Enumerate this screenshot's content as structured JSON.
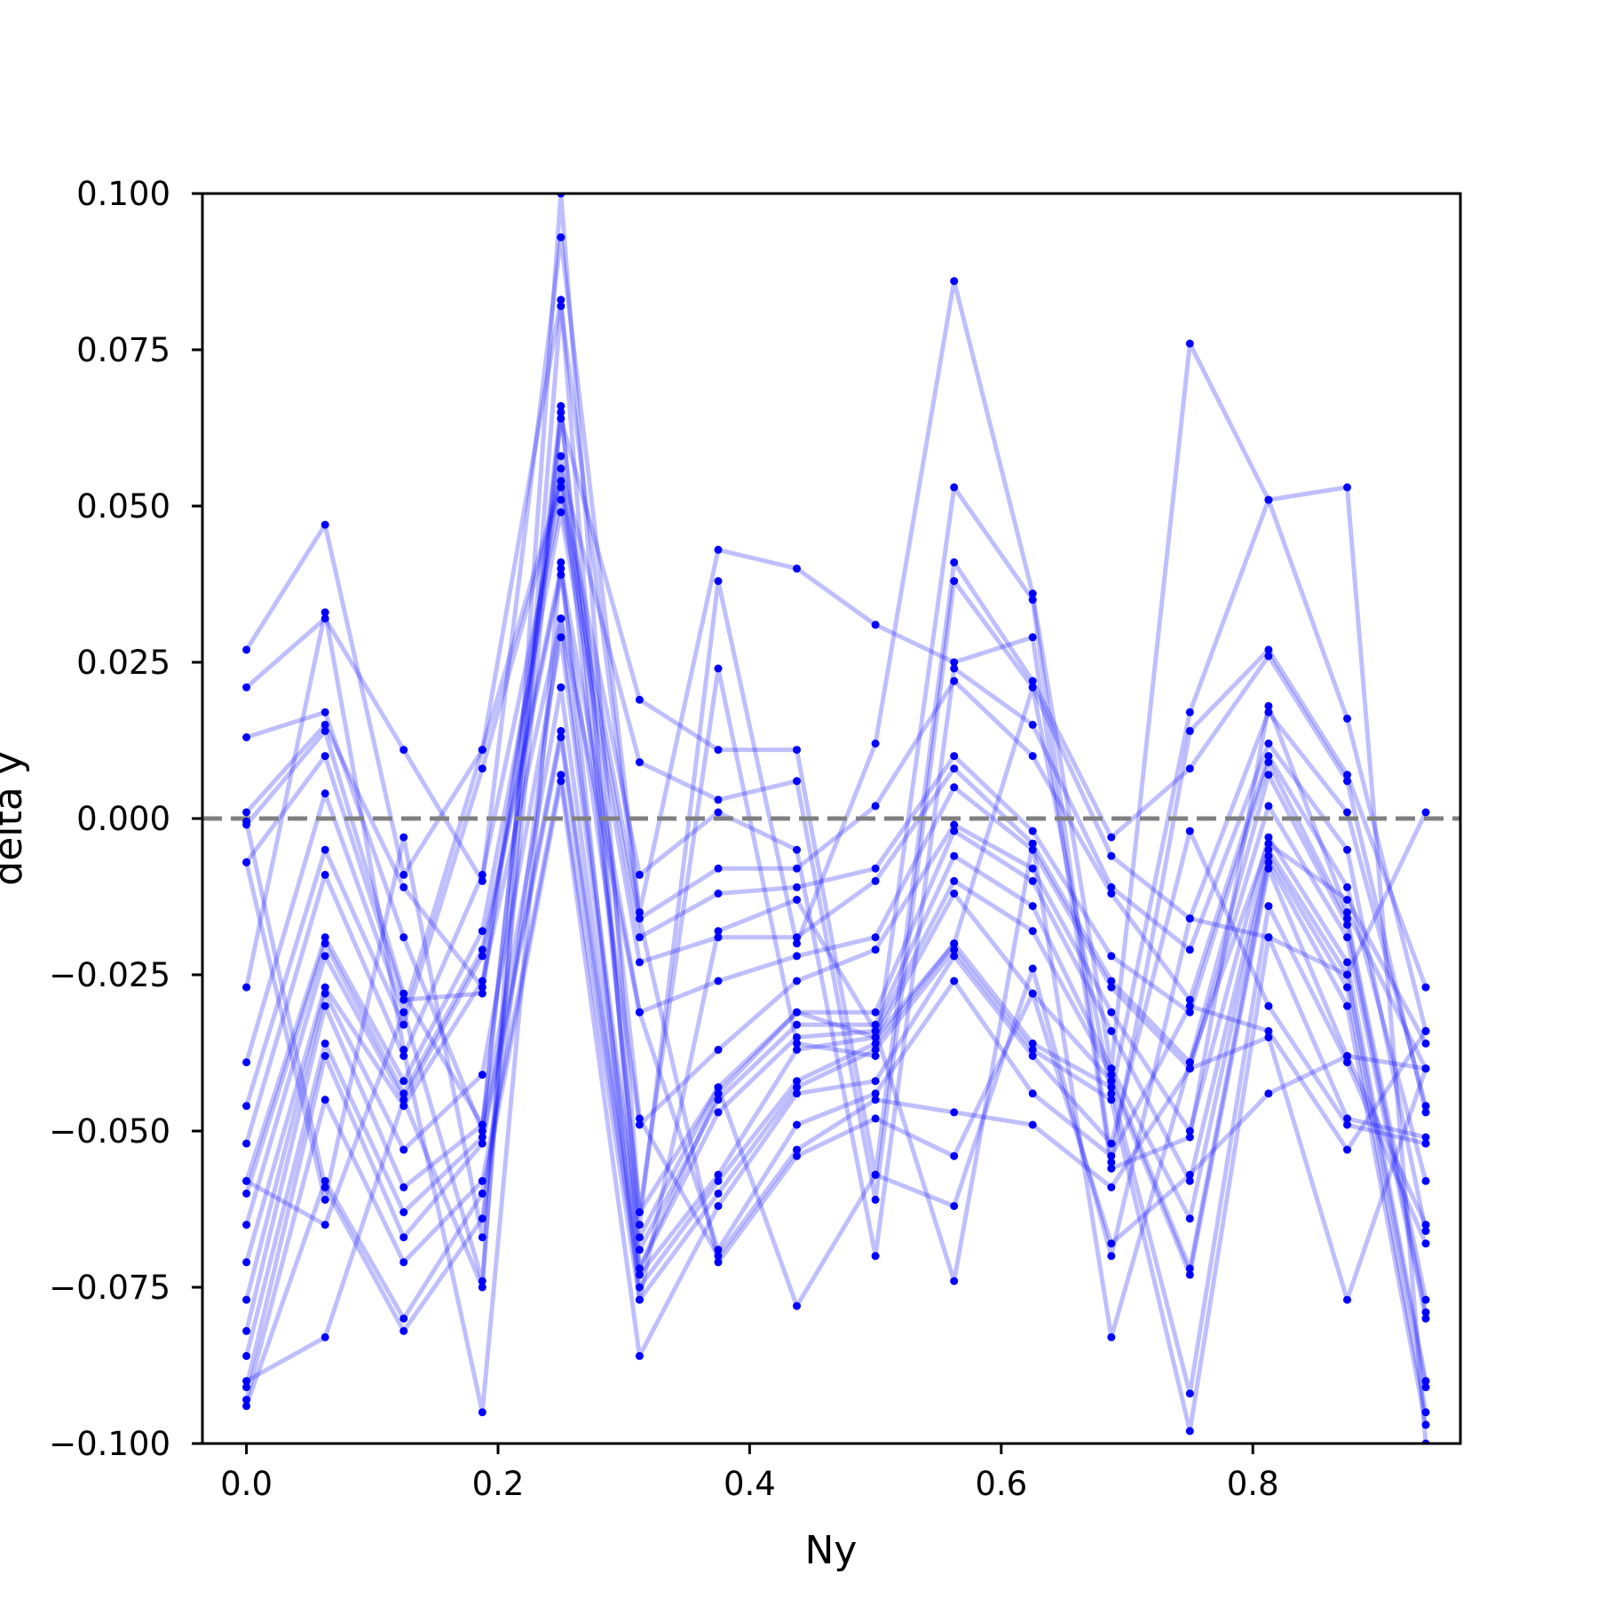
{
  "chart_data": {
    "type": "line",
    "title": "",
    "xlabel": "Ny",
    "ylabel": "delta y",
    "xlim": [
      -0.035,
      0.965
    ],
    "ylim": [
      -0.1,
      0.1
    ],
    "xticks": [
      0.0,
      0.2,
      0.4,
      0.6,
      0.8
    ],
    "xtick_labels": [
      "0.0",
      "0.2",
      "0.4",
      "0.6",
      "0.8"
    ],
    "yticks": [
      0.1,
      0.075,
      0.05,
      0.025,
      0.0,
      -0.025,
      -0.05,
      -0.075,
      -0.1
    ],
    "ytick_labels": [
      "0.100",
      "0.075",
      "0.050",
      "0.025",
      "0.000",
      "−0.025",
      "−0.050",
      "−0.075",
      "−0.100"
    ],
    "grid": false,
    "legend": "none",
    "reference_line": {
      "y": 0.0,
      "style": "dashed",
      "color": "#808080"
    },
    "colors": {
      "series": "#0000ff",
      "reference": "#808080",
      "axes": "#000000"
    },
    "x": [
      0.0,
      0.0625,
      0.125,
      0.1875,
      0.25,
      0.3125,
      0.375,
      0.4375,
      0.5,
      0.5625,
      0.625,
      0.6875,
      0.75,
      0.8125,
      0.875,
      0.9375
    ],
    "series": [
      {
        "values": [
          0.027,
          0.047,
          -0.009,
          0.011,
          0.083,
          -0.072,
          -0.044,
          -0.031,
          -0.035,
          -0.02,
          0.021,
          -0.044,
          0.017,
          0.051,
          0.053,
          -0.1
        ]
      },
      {
        "values": [
          0.021,
          0.032,
          0.011,
          -0.01,
          0.093,
          -0.015,
          0.043,
          0.04,
          0.031,
          0.025,
          0.029,
          -0.056,
          -0.051,
          0.018,
          -0.015,
          -0.04
        ]
      },
      {
        "values": [
          0.013,
          0.017,
          -0.019,
          -0.05,
          0.066,
          -0.065,
          0.038,
          -0.02,
          0.012,
          0.086,
          0.036,
          -0.04,
          0.076,
          0.051,
          0.016,
          -0.034
        ]
      },
      {
        "values": [
          0.001,
          0.015,
          -0.011,
          -0.027,
          0.058,
          -0.063,
          0.024,
          -0.036,
          -0.038,
          0.053,
          0.035,
          -0.055,
          0.014,
          0.027,
          0.007,
          -0.027
        ]
      },
      {
        "values": [
          -0.001,
          0.014,
          -0.028,
          -0.049,
          0.064,
          0.019,
          0.011,
          0.011,
          -0.057,
          0.041,
          0.022,
          -0.003,
          0.008,
          0.026,
          0.006,
          -0.047
        ]
      },
      {
        "values": [
          -0.007,
          0.01,
          -0.029,
          -0.028,
          0.056,
          0.009,
          0.003,
          0.006,
          -0.061,
          0.038,
          0.021,
          -0.006,
          -0.016,
          0.017,
          0.001,
          -0.046
        ]
      },
      {
        "values": [
          -0.039,
          0.004,
          -0.031,
          0.011,
          0.054,
          -0.009,
          0.001,
          -0.005,
          -0.07,
          0.024,
          0.015,
          -0.011,
          -0.021,
          0.012,
          -0.005,
          -0.066
        ]
      },
      {
        "values": [
          -0.046,
          -0.005,
          -0.033,
          0.008,
          0.053,
          -0.016,
          -0.008,
          -0.008,
          0.002,
          0.022,
          0.01,
          -0.012,
          -0.029,
          0.01,
          -0.011,
          -0.058
        ]
      },
      {
        "values": [
          -0.052,
          -0.009,
          -0.038,
          -0.009,
          0.051,
          -0.019,
          -0.012,
          -0.011,
          -0.008,
          0.01,
          -0.002,
          -0.022,
          -0.031,
          0.009,
          -0.016,
          -0.077
        ]
      },
      {
        "values": [
          -0.058,
          -0.019,
          -0.042,
          -0.018,
          0.049,
          -0.023,
          -0.019,
          -0.019,
          -0.01,
          0.008,
          -0.004,
          -0.026,
          -0.039,
          0.007,
          -0.017,
          -0.079
        ]
      },
      {
        "values": [
          -0.06,
          -0.02,
          -0.044,
          -0.021,
          0.04,
          -0.031,
          -0.026,
          -0.022,
          -0.019,
          0.005,
          -0.005,
          -0.027,
          -0.04,
          0.002,
          -0.019,
          -0.08
        ]
      },
      {
        "values": [
          -0.065,
          -0.022,
          -0.045,
          -0.022,
          0.039,
          -0.049,
          -0.037,
          -0.026,
          -0.021,
          -0.001,
          -0.008,
          -0.031,
          -0.05,
          -0.003,
          -0.023,
          -0.09
        ]
      },
      {
        "values": [
          -0.071,
          -0.027,
          -0.046,
          -0.026,
          0.032,
          -0.067,
          -0.043,
          -0.031,
          -0.031,
          -0.002,
          -0.01,
          -0.034,
          -0.058,
          -0.005,
          -0.025,
          -0.091
        ]
      },
      {
        "values": [
          -0.077,
          -0.028,
          -0.053,
          -0.041,
          0.029,
          -0.069,
          -0.045,
          -0.033,
          -0.033,
          -0.006,
          -0.014,
          -0.04,
          -0.064,
          -0.006,
          -0.027,
          -0.095
        ]
      },
      {
        "values": [
          -0.082,
          -0.03,
          -0.059,
          -0.049,
          0.021,
          -0.072,
          -0.047,
          -0.035,
          -0.034,
          -0.01,
          -0.018,
          -0.041,
          -0.072,
          -0.007,
          -0.03,
          -0.097
        ]
      },
      {
        "values": [
          -0.086,
          -0.036,
          -0.063,
          -0.051,
          0.014,
          -0.073,
          -0.057,
          -0.037,
          -0.035,
          -0.012,
          -0.028,
          -0.042,
          -0.073,
          -0.008,
          -0.038,
          -0.065
        ]
      },
      {
        "values": [
          -0.091,
          -0.038,
          -0.067,
          -0.052,
          0.013,
          -0.075,
          -0.058,
          -0.042,
          -0.036,
          -0.02,
          -0.036,
          -0.043,
          -0.092,
          -0.014,
          -0.039,
          -0.068
        ]
      },
      {
        "values": [
          -0.093,
          -0.045,
          -0.071,
          -0.058,
          0.007,
          -0.077,
          -0.06,
          -0.043,
          -0.037,
          -0.021,
          -0.037,
          -0.045,
          -0.098,
          -0.019,
          -0.048,
          -0.051
        ]
      },
      {
        "values": [
          -0.094,
          -0.058,
          -0.08,
          -0.06,
          0.006,
          -0.086,
          -0.062,
          -0.044,
          -0.042,
          -0.022,
          -0.038,
          -0.052,
          -0.002,
          -0.03,
          -0.049,
          -0.052
        ]
      },
      {
        "values": [
          -0.0005,
          -0.059,
          -0.082,
          -0.064,
          0.032,
          -0.031,
          -0.069,
          -0.049,
          -0.044,
          -0.026,
          -0.044,
          -0.054,
          -0.03,
          -0.034,
          -0.053,
          -0.034
        ]
      },
      {
        "values": [
          -0.007,
          -0.061,
          -0.003,
          -0.067,
          0.065,
          -0.048,
          -0.07,
          -0.053,
          -0.045,
          -0.047,
          -0.049,
          -0.059,
          -0.04,
          -0.035,
          -0.077,
          -0.04
        ]
      },
      {
        "values": [
          -0.058,
          -0.065,
          -0.031,
          -0.074,
          0.082,
          -0.016,
          -0.071,
          -0.054,
          -0.048,
          -0.054,
          -0.028,
          -0.068,
          -0.057,
          -0.044,
          -0.038,
          -0.04
        ]
      },
      {
        "values": [
          -0.09,
          -0.083,
          -0.045,
          -0.075,
          0.1,
          -0.063,
          -0.043,
          -0.078,
          -0.057,
          -0.062,
          -0.024,
          -0.07,
          -0.016,
          -0.019,
          -0.025,
          0.001
        ]
      },
      {
        "values": [
          -0.027,
          0.033,
          -0.037,
          -0.095,
          0.041,
          -0.077,
          -0.018,
          -0.013,
          -0.034,
          -0.074,
          -0.004,
          -0.083,
          -0.039,
          -0.004,
          -0.013,
          -0.036
        ]
      }
    ]
  }
}
